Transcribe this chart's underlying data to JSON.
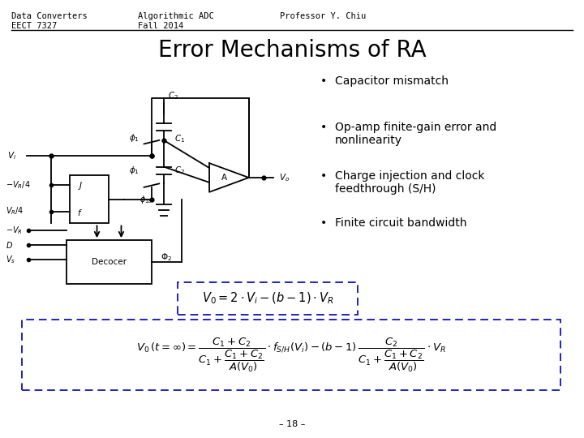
{
  "background_color": "#ffffff",
  "header_left_line1": "Data Converters",
  "header_left_line2": "EECT 7327",
  "header_mid_line1": "Algorithmic ADC",
  "header_mid_line2": "Fall 2014",
  "header_right": "Professor Y. Chiu",
  "title": "Error Mechanisms of RA",
  "bullets": [
    "Capacitor mismatch",
    "Op-amp finite-gain error and\nnonlinearity",
    "Charge injection and clock\nfeedthrough (S/H)",
    "Finite circuit bandwidth"
  ],
  "page_number": "– 18 –",
  "header_fontsize": 7.5,
  "title_fontsize": 20,
  "bullet_fontsize": 10,
  "page_fontsize": 8,
  "divider_color": "#000000",
  "bullet_color": "#000000",
  "title_color": "#000000",
  "box1_color": "#2222bb",
  "box2_color": "#2222bb"
}
